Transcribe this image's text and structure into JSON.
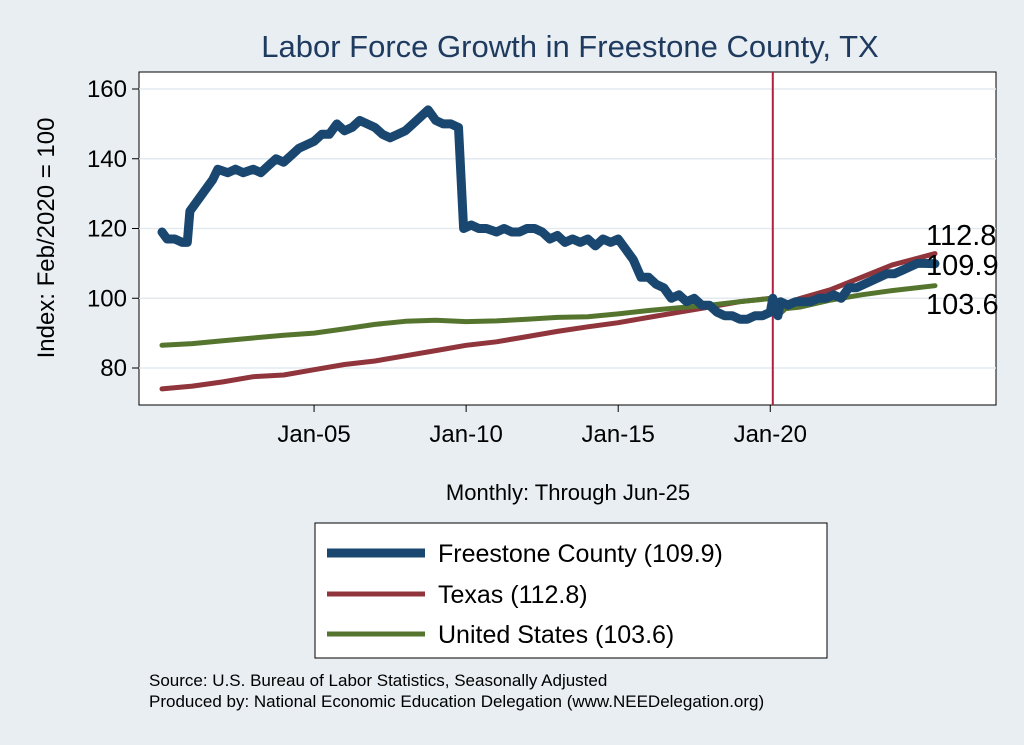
{
  "chart_data": {
    "type": "line",
    "title": "Labor Force Growth in Freestone  County, TX",
    "ylabel": "Index: Feb/2020 = 100",
    "xlabel": "Monthly: Through Jun-25",
    "ylim": [
      70,
      165
    ],
    "yticks": [
      80,
      100,
      120,
      140,
      160
    ],
    "xlim": [
      "2000-01",
      "2025-12"
    ],
    "xticks": [
      {
        "x": "2005-01",
        "label": "Jan-05"
      },
      {
        "x": "2010-01",
        "label": "Jan-10"
      },
      {
        "x": "2015-01",
        "label": "Jan-15"
      },
      {
        "x": "2020-01",
        "label": "Jan-20"
      }
    ],
    "reference_line": {
      "x": "2020-02"
    },
    "grid": true,
    "legend_position": "bottom",
    "series": [
      {
        "name": "Freestone  County (109.9)",
        "color": "#1a476f",
        "end_label": "109.9",
        "points": [
          [
            "2000-01",
            119
          ],
          [
            "2000-03",
            117
          ],
          [
            "2000-06",
            117
          ],
          [
            "2000-09",
            116
          ],
          [
            "2000-11",
            116
          ],
          [
            "2000-12",
            125
          ],
          [
            "2001-03",
            128
          ],
          [
            "2001-06",
            131
          ],
          [
            "2001-09",
            134
          ],
          [
            "2001-11",
            137
          ],
          [
            "2002-03",
            136
          ],
          [
            "2002-06",
            137
          ],
          [
            "2002-09",
            136
          ],
          [
            "2003-01",
            137
          ],
          [
            "2003-04",
            136
          ],
          [
            "2003-07",
            138
          ],
          [
            "2003-10",
            140
          ],
          [
            "2004-01",
            139
          ],
          [
            "2004-04",
            141
          ],
          [
            "2004-07",
            143
          ],
          [
            "2004-10",
            144
          ],
          [
            "2005-01",
            145
          ],
          [
            "2005-04",
            147
          ],
          [
            "2005-07",
            147
          ],
          [
            "2005-10",
            150
          ],
          [
            "2006-01",
            148
          ],
          [
            "2006-04",
            149
          ],
          [
            "2006-07",
            151
          ],
          [
            "2006-10",
            150
          ],
          [
            "2007-01",
            149
          ],
          [
            "2007-04",
            147
          ],
          [
            "2007-07",
            146
          ],
          [
            "2007-10",
            147
          ],
          [
            "2008-01",
            148
          ],
          [
            "2008-04",
            150
          ],
          [
            "2008-07",
            152
          ],
          [
            "2008-10",
            154
          ],
          [
            "2009-01",
            151
          ],
          [
            "2009-04",
            150
          ],
          [
            "2009-07",
            150
          ],
          [
            "2009-10",
            149
          ],
          [
            "2009-12",
            120
          ],
          [
            "2010-03",
            121
          ],
          [
            "2010-06",
            120
          ],
          [
            "2010-09",
            120
          ],
          [
            "2011-01",
            119
          ],
          [
            "2011-04",
            120
          ],
          [
            "2011-07",
            119
          ],
          [
            "2011-10",
            119
          ],
          [
            "2012-01",
            120
          ],
          [
            "2012-04",
            120
          ],
          [
            "2012-07",
            119
          ],
          [
            "2012-10",
            117
          ],
          [
            "2013-01",
            118
          ],
          [
            "2013-04",
            116
          ],
          [
            "2013-07",
            117
          ],
          [
            "2013-10",
            116
          ],
          [
            "2014-01",
            117
          ],
          [
            "2014-04",
            115
          ],
          [
            "2014-07",
            117
          ],
          [
            "2014-10",
            116
          ],
          [
            "2015-01",
            117
          ],
          [
            "2015-04",
            114
          ],
          [
            "2015-07",
            111
          ],
          [
            "2015-10",
            106
          ],
          [
            "2016-01",
            106
          ],
          [
            "2016-04",
            104
          ],
          [
            "2016-07",
            103
          ],
          [
            "2016-10",
            100
          ],
          [
            "2017-01",
            101
          ],
          [
            "2017-04",
            99
          ],
          [
            "2017-07",
            100
          ],
          [
            "2017-10",
            98
          ],
          [
            "2018-01",
            98
          ],
          [
            "2018-04",
            96
          ],
          [
            "2018-07",
            95
          ],
          [
            "2018-10",
            95
          ],
          [
            "2019-01",
            94
          ],
          [
            "2019-04",
            94
          ],
          [
            "2019-07",
            95
          ],
          [
            "2019-10",
            95
          ],
          [
            "2020-01",
            96
          ],
          [
            "2020-02",
            100
          ],
          [
            "2020-04",
            95
          ],
          [
            "2020-05",
            99
          ],
          [
            "2020-08",
            98
          ],
          [
            "2020-11",
            99
          ],
          [
            "2021-02",
            99
          ],
          [
            "2021-05",
            99
          ],
          [
            "2021-08",
            100
          ],
          [
            "2021-11",
            100
          ],
          [
            "2022-02",
            101
          ],
          [
            "2022-05",
            100
          ],
          [
            "2022-08",
            103
          ],
          [
            "2022-11",
            103
          ],
          [
            "2023-02",
            104
          ],
          [
            "2023-05",
            105
          ],
          [
            "2023-08",
            106
          ],
          [
            "2023-11",
            107
          ],
          [
            "2024-02",
            107
          ],
          [
            "2024-05",
            108
          ],
          [
            "2024-08",
            109
          ],
          [
            "2024-11",
            110
          ],
          [
            "2025-02",
            110
          ],
          [
            "2025-06",
            109.9
          ]
        ]
      },
      {
        "name": "Texas (112.8)",
        "color": "#90353b",
        "end_label": "112.8",
        "points": [
          [
            "2000-01",
            74
          ],
          [
            "2001-01",
            74.8
          ],
          [
            "2002-01",
            76
          ],
          [
            "2003-01",
            77.5
          ],
          [
            "2004-01",
            78
          ],
          [
            "2005-01",
            79.5
          ],
          [
            "2006-01",
            81
          ],
          [
            "2007-01",
            82
          ],
          [
            "2008-01",
            83.5
          ],
          [
            "2009-01",
            85
          ],
          [
            "2010-01",
            86.5
          ],
          [
            "2011-01",
            87.5
          ],
          [
            "2012-01",
            89
          ],
          [
            "2013-01",
            90.5
          ],
          [
            "2014-01",
            91.8
          ],
          [
            "2015-01",
            93
          ],
          [
            "2016-01",
            94.5
          ],
          [
            "2017-01",
            96
          ],
          [
            "2018-01",
            97.5
          ],
          [
            "2019-01",
            99
          ],
          [
            "2020-01",
            100
          ],
          [
            "2020-04",
            97
          ],
          [
            "2020-07",
            98.5
          ],
          [
            "2021-01",
            100
          ],
          [
            "2022-01",
            102.5
          ],
          [
            "2023-01",
            106
          ],
          [
            "2024-01",
            109.5
          ],
          [
            "2025-06",
            112.8
          ]
        ]
      },
      {
        "name": "United States (103.6)",
        "color": "#55752f",
        "end_label": "103.6",
        "points": [
          [
            "2000-01",
            86.5
          ],
          [
            "2001-01",
            87
          ],
          [
            "2002-01",
            87.8
          ],
          [
            "2003-01",
            88.6
          ],
          [
            "2004-01",
            89.4
          ],
          [
            "2005-01",
            90
          ],
          [
            "2006-01",
            91.2
          ],
          [
            "2007-01",
            92.5
          ],
          [
            "2008-01",
            93.4
          ],
          [
            "2009-01",
            93.7
          ],
          [
            "2010-01",
            93.3
          ],
          [
            "2011-01",
            93.5
          ],
          [
            "2012-01",
            94
          ],
          [
            "2013-01",
            94.5
          ],
          [
            "2014-01",
            94.7
          ],
          [
            "2015-01",
            95.5
          ],
          [
            "2016-01",
            96.5
          ],
          [
            "2017-01",
            97.3
          ],
          [
            "2018-01",
            98
          ],
          [
            "2019-01",
            99
          ],
          [
            "2020-02",
            100
          ],
          [
            "2020-04",
            95
          ],
          [
            "2020-07",
            97
          ],
          [
            "2021-01",
            97.5
          ],
          [
            "2022-01",
            99.5
          ],
          [
            "2023-01",
            101
          ],
          [
            "2024-01",
            102.2
          ],
          [
            "2025-06",
            103.6
          ]
        ]
      }
    ]
  },
  "footer": {
    "source": "Source: U.S. Bureau of Labor Statistics, Seasonally Adjusted",
    "produced": "Produced by: National Economic Education Delegation (www.NEEDelegation.org)"
  }
}
